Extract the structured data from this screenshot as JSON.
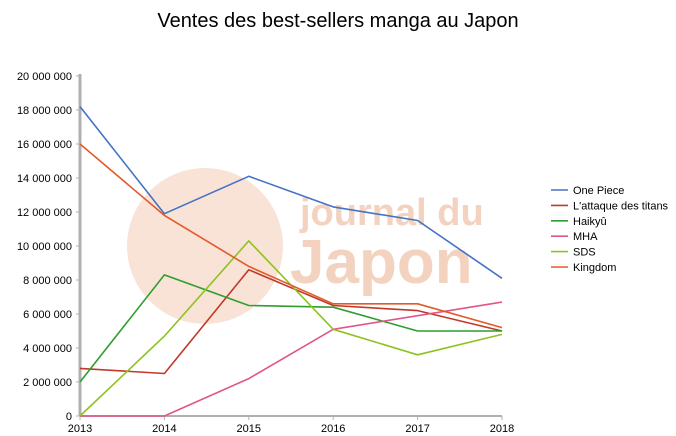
{
  "chart_data": {
    "type": "line",
    "title": "Ventes des best-sellers manga au Japon",
    "watermark": {
      "line1": "journal du",
      "line2": "Japon"
    },
    "x": [
      2013,
      2014,
      2015,
      2016,
      2017,
      2018
    ],
    "x_tick_labels": [
      "2013",
      "2014",
      "2015",
      "2016",
      "2017",
      "2018"
    ],
    "ylim": [
      0,
      20000000
    ],
    "y_ticks": [
      0,
      2000000,
      4000000,
      6000000,
      8000000,
      10000000,
      12000000,
      14000000,
      16000000,
      18000000,
      20000000
    ],
    "y_tick_labels": [
      "0",
      "2 000 000",
      "4 000 000",
      "6 000 000",
      "8 000 000",
      "10 000 000",
      "12 000 000",
      "14 000 000",
      "16 000 000",
      "18 000 000",
      "20 000 000"
    ],
    "grid": false,
    "legend_position": "right",
    "series": [
      {
        "name": "One Piece",
        "color": "#4472c4",
        "values": [
          18200000,
          11900000,
          14100000,
          12300000,
          11500000,
          8100000
        ]
      },
      {
        "name": "L'attaque des titans",
        "color": "#c0392b",
        "values": [
          2800000,
          2500000,
          8600000,
          6500000,
          6200000,
          5000000
        ]
      },
      {
        "name": "Haikyû",
        "color": "#2e9e2e",
        "values": [
          2000000,
          8300000,
          6500000,
          6400000,
          5000000,
          5000000
        ]
      },
      {
        "name": "MHA",
        "color": "#e0558a",
        "values": [
          0,
          0,
          2200000,
          5100000,
          5900000,
          6700000
        ]
      },
      {
        "name": "SDS",
        "color": "#8dc21f",
        "values": [
          0,
          4700000,
          10300000,
          5100000,
          3600000,
          4800000
        ]
      },
      {
        "name": "Kingdom",
        "color": "#e25a2a",
        "values": [
          16000000,
          11800000,
          8800000,
          6600000,
          6600000,
          5200000
        ]
      }
    ]
  }
}
